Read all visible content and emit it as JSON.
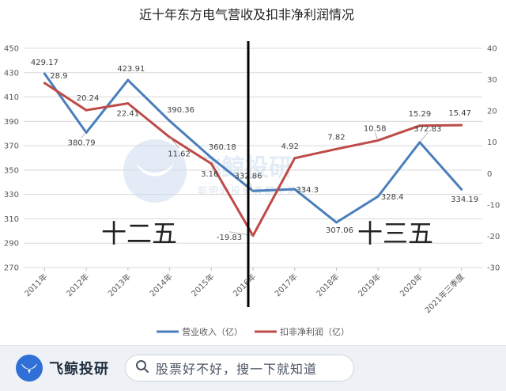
{
  "chart_data": {
    "type": "line",
    "title": "近十年东方电气营收及扣非净利润情况",
    "categories": [
      "2011年",
      "2012年",
      "2013年",
      "2014年",
      "2015年",
      "2016年",
      "2017年",
      "2018年",
      "2019年",
      "2020年",
      "2021年三季度"
    ],
    "series": [
      {
        "name": "营业收入（亿）",
        "axis": "left",
        "color": "#4a7ebb",
        "values": [
          429.17,
          380.79,
          423.91,
          390.36,
          360.18,
          332.86,
          334.3,
          307.06,
          328.4,
          372.83,
          334.19
        ],
        "labels": [
          "429.17",
          "380.79",
          "423.91",
          "390.36",
          "360.18",
          "332.86",
          "334.3",
          "307.06",
          "328.4",
          "372.83",
          "334.19"
        ]
      },
      {
        "name": "扣非净利润（亿）",
        "axis": "right",
        "color": "#be4b48",
        "values": [
          28.9,
          20.24,
          22.41,
          11.62,
          3.16,
          -19.83,
          4.92,
          7.82,
          10.58,
          15.29,
          15.47
        ],
        "labels": [
          "28.9",
          "20.24",
          "22.41",
          "11.62",
          "3.16",
          "-19.83",
          "4.92",
          "7.82",
          "10.58",
          "15.29",
          "15.47"
        ]
      }
    ],
    "y_left": {
      "min": 270,
      "max": 450,
      "step": 20,
      "ticks": [
        "270",
        "290",
        "310",
        "330",
        "350",
        "370",
        "390",
        "410",
        "430",
        "450"
      ]
    },
    "y_right": {
      "min": -30,
      "max": 40,
      "step": 10,
      "ticks": [
        "-30",
        "-20",
        "-10",
        "0",
        "10",
        "20",
        "30",
        "40"
      ]
    },
    "grid": true,
    "legend_position": "bottom",
    "annotations": [
      {
        "text": "十二五",
        "region": "left"
      },
      {
        "text": "十三五",
        "region": "right"
      }
    ],
    "divider_after_category": "2016年"
  },
  "watermark": {
    "name": "飞鲸投研",
    "slogan": "聪明的投资者都在关注"
  },
  "footer": {
    "brand": "飞鲸投研",
    "logo_icon": "whale-tail-icon",
    "search_icon": "search-icon",
    "search_text": "股票好不好，搜一下就知道"
  }
}
